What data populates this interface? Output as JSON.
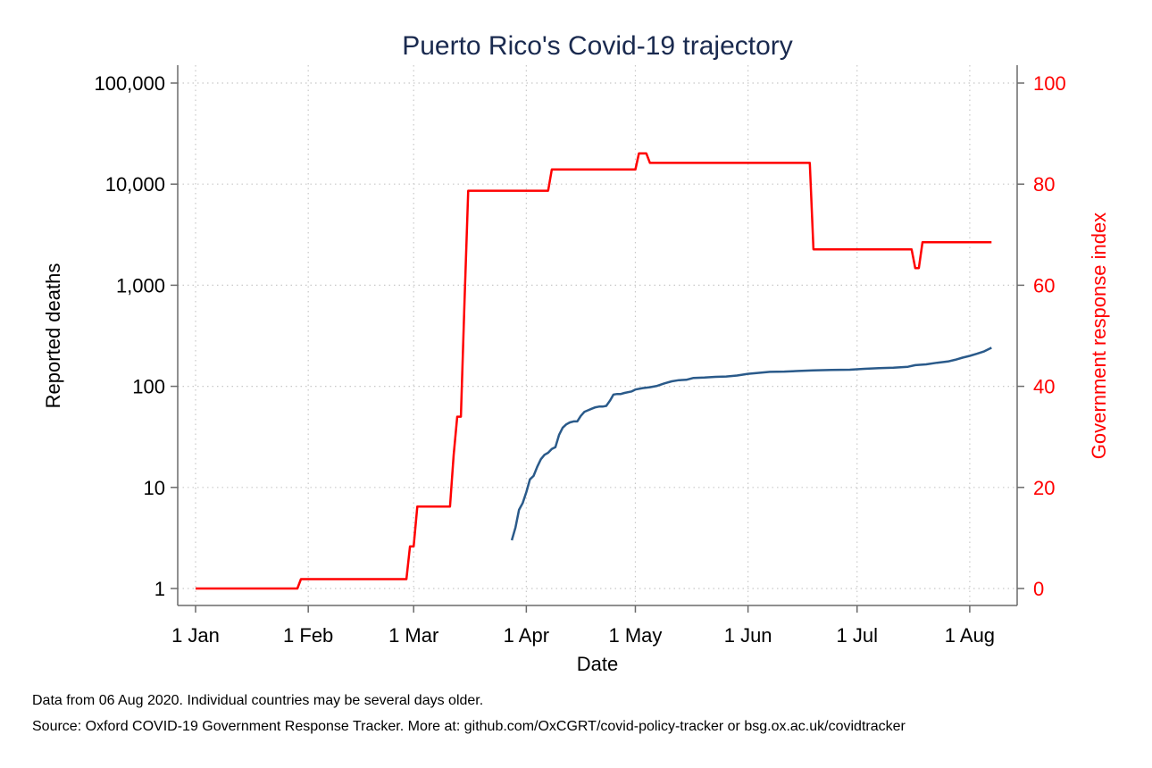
{
  "chart_data": {
    "type": "line",
    "title": "Puerto Rico's Covid-19 trajectory",
    "xlabel": "Date",
    "ylabel_left": "Reported deaths",
    "ylabel_right": "Government response index",
    "x_ticks": [
      "1 Jan",
      "1 Feb",
      "1 Mar",
      "1 Apr",
      "1 May",
      "1 Jun",
      "1 Jul",
      "1 Aug"
    ],
    "x_tick_days": [
      0,
      31,
      60,
      91,
      121,
      152,
      182,
      213
    ],
    "xlim_days": [
      0,
      219
    ],
    "left_axis": {
      "scale": "log",
      "ticks": [
        1,
        10,
        100,
        1000,
        10000,
        100000
      ],
      "tick_labels": [
        "1",
        "10",
        "100",
        "1,000",
        "10,000",
        "100,000"
      ]
    },
    "right_axis": {
      "scale": "linear",
      "ylim": [
        0,
        100
      ],
      "ticks": [
        0,
        20,
        40,
        60,
        80,
        100
      ],
      "tick_labels": [
        "0",
        "20",
        "40",
        "60",
        "80",
        "100"
      ]
    },
    "grid": true,
    "colors": {
      "deaths": "#2a5a8a",
      "response": "#ff0000",
      "title": "#1a2a4f"
    },
    "series": [
      {
        "axis": "left",
        "color": "#2a5a8a",
        "points": [
          [
            87,
            3
          ],
          [
            88,
            4
          ],
          [
            89,
            6
          ],
          [
            90,
            7
          ],
          [
            91,
            9
          ],
          [
            92,
            12
          ],
          [
            93,
            13
          ],
          [
            94,
            16
          ],
          [
            95,
            19
          ],
          [
            96,
            21
          ],
          [
            97,
            22
          ],
          [
            98,
            24
          ],
          [
            99,
            25
          ],
          [
            100,
            33
          ],
          [
            101,
            39
          ],
          [
            102,
            42
          ],
          [
            103,
            44
          ],
          [
            104,
            45
          ],
          [
            105,
            45
          ],
          [
            106,
            51
          ],
          [
            107,
            56
          ],
          [
            108,
            58
          ],
          [
            109,
            60
          ],
          [
            110,
            62
          ],
          [
            111,
            63
          ],
          [
            112,
            63
          ],
          [
            113,
            64
          ],
          [
            114,
            72
          ],
          [
            115,
            83
          ],
          [
            116,
            84
          ],
          [
            117,
            84
          ],
          [
            118,
            86
          ],
          [
            120,
            89
          ],
          [
            121,
            93
          ],
          [
            123,
            96
          ],
          [
            125,
            98
          ],
          [
            127,
            101
          ],
          [
            129,
            107
          ],
          [
            131,
            112
          ],
          [
            133,
            115
          ],
          [
            135,
            116
          ],
          [
            137,
            121
          ],
          [
            140,
            122
          ],
          [
            143,
            124
          ],
          [
            146,
            125
          ],
          [
            149,
            128
          ],
          [
            152,
            133
          ],
          [
            155,
            136
          ],
          [
            158,
            139
          ],
          [
            162,
            140
          ],
          [
            166,
            142
          ],
          [
            170,
            144
          ],
          [
            175,
            145
          ],
          [
            180,
            146
          ],
          [
            184,
            149
          ],
          [
            188,
            151
          ],
          [
            192,
            153
          ],
          [
            196,
            156
          ],
          [
            198,
            162
          ],
          [
            201,
            165
          ],
          [
            204,
            171
          ],
          [
            207,
            176
          ],
          [
            209,
            183
          ],
          [
            211,
            192
          ],
          [
            213,
            200
          ],
          [
            215,
            210
          ],
          [
            217,
            222
          ],
          [
            219,
            241
          ]
        ]
      },
      {
        "axis": "right",
        "color": "#ff0000",
        "points": [
          [
            0,
            0
          ],
          [
            28,
            0
          ],
          [
            29,
            1.85
          ],
          [
            58,
            1.85
          ],
          [
            59,
            8.33
          ],
          [
            60,
            8.33
          ],
          [
            61,
            16.2
          ],
          [
            70,
            16.2
          ],
          [
            71,
            26.4
          ],
          [
            72,
            34
          ],
          [
            73,
            34
          ],
          [
            74,
            57
          ],
          [
            75,
            78.7
          ],
          [
            97,
            78.7
          ],
          [
            98,
            82.9
          ],
          [
            121,
            82.9
          ],
          [
            122,
            86.1
          ],
          [
            124,
            86.1
          ],
          [
            125,
            84.2
          ],
          [
            169,
            84.2
          ],
          [
            170,
            67.1
          ],
          [
            197,
            67.1
          ],
          [
            198,
            63.4
          ],
          [
            199,
            63.4
          ],
          [
            200,
            68.5
          ],
          [
            219,
            68.5
          ]
        ]
      }
    ]
  },
  "notes": {
    "line1": "Data from 06 Aug 2020. Individual countries may be several days older.",
    "line2": "Source: Oxford COVID-19 Government Response Tracker. More at: github.com/OxCGRT/covid-policy-tracker or bsg.ox.ac.uk/covidtracker"
  }
}
